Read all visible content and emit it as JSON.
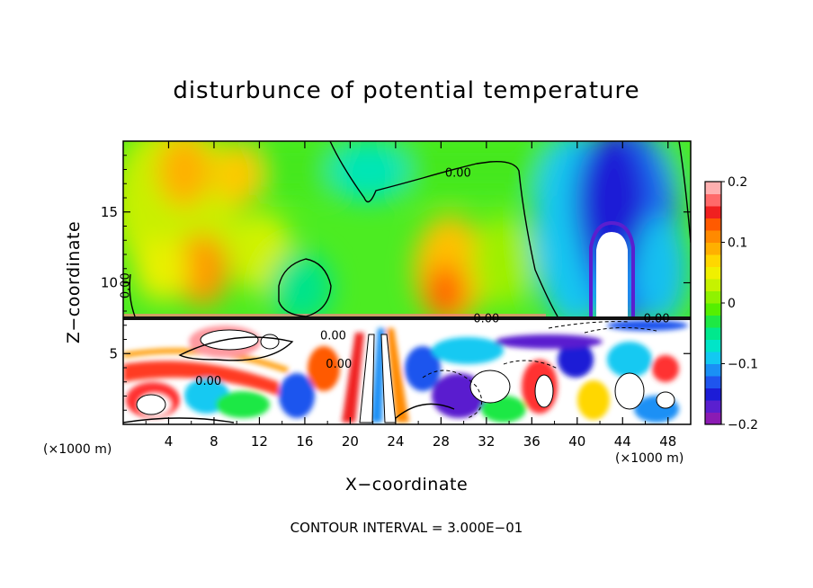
{
  "chart_data": {
    "type": "heatmap",
    "title": "disturbunce of potential temperature",
    "xlabel": "X−coordinate",
    "ylabel": "Z−coordinate",
    "x_unit": "(×1000 m)",
    "footer": "CONTOUR INTERVAL = 3.000E−01",
    "xlim": [
      0,
      50
    ],
    "ylim": [
      0,
      20
    ],
    "x_ticks": [
      4,
      8,
      12,
      16,
      20,
      24,
      28,
      32,
      36,
      40,
      44,
      48
    ],
    "y_ticks": [
      5,
      10,
      15
    ],
    "colorbar": {
      "min": -0.2,
      "max": 0.2,
      "ticks": [
        {
          "value": 0.2,
          "label": "0.2"
        },
        {
          "value": 0.1,
          "label": "0.1"
        },
        {
          "value": 0,
          "label": "0"
        },
        {
          "value": -0.1,
          "label": "−0.1"
        },
        {
          "value": -0.2,
          "label": "−0.2"
        }
      ],
      "colors": [
        "#8b1bb3",
        "#5a1fcf",
        "#1c1cd6",
        "#1f55ee",
        "#1a90f5",
        "#12c9f2",
        "#00e5c8",
        "#00e88d",
        "#1ee844",
        "#55ef00",
        "#8ff200",
        "#c6f200",
        "#f0f000",
        "#ffd700",
        "#ffb000",
        "#ff8a00",
        "#ff5a00",
        "#f02020",
        "#ff6a6a",
        "#ffb0b0"
      ]
    },
    "contour_labels": [
      {
        "text": "0.00",
        "x": 29.5,
        "z": 17.5
      },
      {
        "text": "0.00",
        "x": 0.5,
        "z": 9.8
      },
      {
        "text": "0.00",
        "x": 32.0,
        "z": 7.2
      },
      {
        "text": "0.00",
        "x": 47.0,
        "z": 7.2
      },
      {
        "text": "0.00",
        "x": 18.5,
        "z": 6.0
      },
      {
        "text": "0.00",
        "x": 19.0,
        "z": 4.0
      },
      {
        "text": "0.00",
        "x": 7.5,
        "z": 2.8
      }
    ]
  }
}
